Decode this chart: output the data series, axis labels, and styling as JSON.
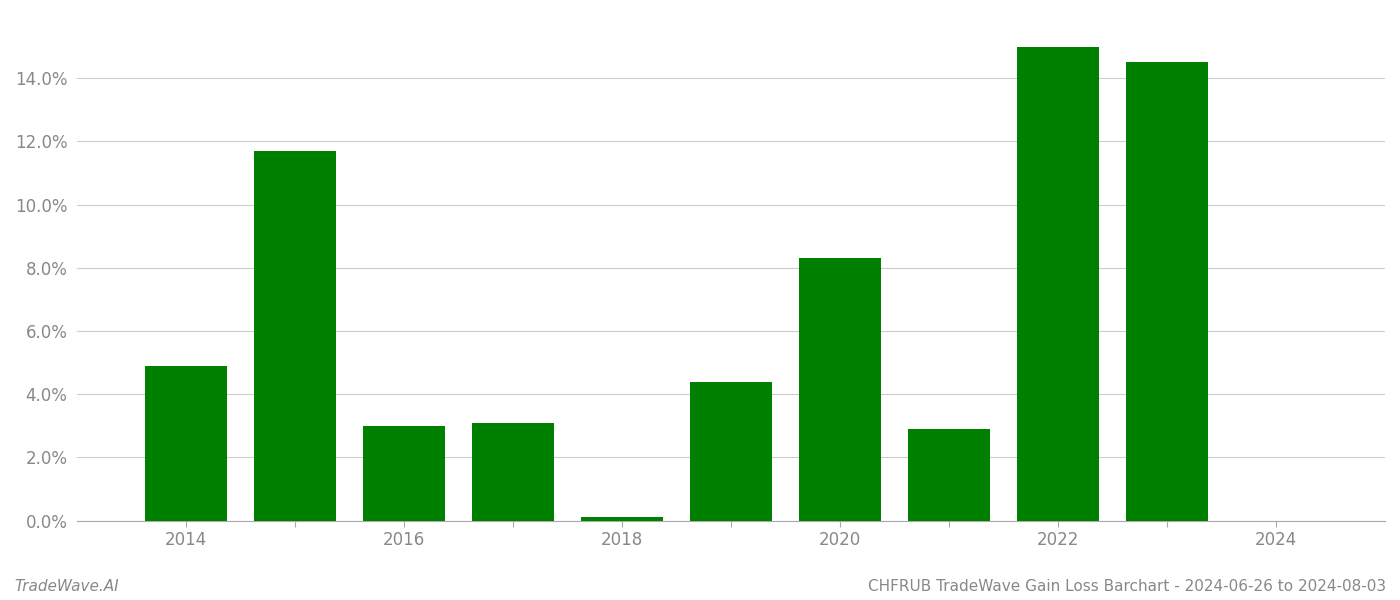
{
  "years": [
    2014,
    2015,
    2016,
    2017,
    2018,
    2019,
    2020,
    2021,
    2022,
    2023,
    2024
  ],
  "values": [
    0.049,
    0.117,
    0.03,
    0.031,
    0.001,
    0.044,
    0.083,
    0.029,
    0.15,
    0.145,
    0.0
  ],
  "bar_color": "#008000",
  "title": "CHFRUB TradeWave Gain Loss Barchart - 2024-06-26 to 2024-08-03",
  "watermark": "TradeWave.AI",
  "ylim": [
    0,
    0.16
  ],
  "yticks": [
    0.0,
    0.02,
    0.04,
    0.06,
    0.08,
    0.1,
    0.12,
    0.14
  ],
  "background_color": "#ffffff",
  "grid_color": "#cccccc",
  "title_fontsize": 11,
  "watermark_fontsize": 11,
  "tick_label_color": "#888888",
  "label_years": [
    2014,
    2016,
    2018,
    2020,
    2022,
    2024
  ],
  "bar_width": 0.75
}
